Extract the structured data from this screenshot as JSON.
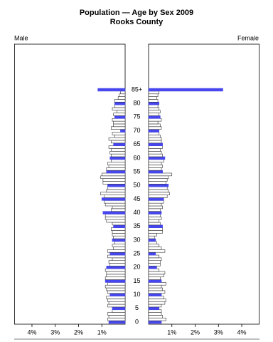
{
  "chart_data": {
    "type": "pyramid",
    "title": "Population — Age by Sex 2009",
    "subtitle": "Rooks County",
    "categories": [
      "0",
      null,
      null,
      null,
      null,
      "5",
      null,
      null,
      null,
      null,
      "10",
      null,
      null,
      null,
      null,
      "15",
      null,
      null,
      null,
      null,
      "20",
      null,
      null,
      null,
      null,
      "25",
      null,
      null,
      null,
      null,
      "30",
      null,
      null,
      null,
      null,
      "35",
      null,
      null,
      null,
      null,
      "40",
      null,
      null,
      null,
      null,
      "45",
      null,
      null,
      null,
      null,
      "50",
      null,
      null,
      null,
      null,
      "55",
      null,
      null,
      null,
      null,
      "60",
      null,
      null,
      null,
      null,
      "65",
      null,
      null,
      null,
      null,
      "70",
      null,
      null,
      null,
      null,
      "75",
      null,
      null,
      null,
      null,
      "80",
      null,
      null,
      null,
      null,
      "85+"
    ],
    "series": [
      {
        "name": "Male",
        "values": [
          0.7,
          0.75,
          0.7,
          0.75,
          0.55,
          0.55,
          0.75,
          0.7,
          0.75,
          0.8,
          0.65,
          0.75,
          0.8,
          0.85,
          0.75,
          0.85,
          0.85,
          0.8,
          0.8,
          0.85,
          0.8,
          0.65,
          0.7,
          0.55,
          0.75,
          0.65,
          0.75,
          0.5,
          0.55,
          0.45,
          0.55,
          0.5,
          0.55,
          0.55,
          0.6,
          0.5,
          0.55,
          0.8,
          0.85,
          0.85,
          0.95,
          0.6,
          0.55,
          0.85,
          0.9,
          1.0,
          0.9,
          1.05,
          0.8,
          0.75,
          0.75,
          0.95,
          0.95,
          1.05,
          1.0,
          0.8,
          0.8,
          0.7,
          0.75,
          0.6,
          0.65,
          0.6,
          0.65,
          0.6,
          0.7,
          0.5,
          0.6,
          0.7,
          0.45,
          0.55,
          0.2,
          0.6,
          0.5,
          0.5,
          0.55,
          0.45,
          0.5,
          0.35,
          0.55,
          0.45,
          0.45,
          0.45,
          0.3,
          0.25,
          0.2,
          1.17
        ]
      },
      {
        "name": "Female",
        "values": [
          0.55,
          0.75,
          0.6,
          0.55,
          0.55,
          0.45,
          0.55,
          0.7,
          0.75,
          0.65,
          0.55,
          0.7,
          0.6,
          0.55,
          0.75,
          0.55,
          0.5,
          0.65,
          0.7,
          0.45,
          0.35,
          0.5,
          0.5,
          0.55,
          0.45,
          0.3,
          0.7,
          0.55,
          0.45,
          0.35,
          0.3,
          0.25,
          0.35,
          0.6,
          0.6,
          0.6,
          0.5,
          0.45,
          0.55,
          0.5,
          0.55,
          0.5,
          0.6,
          0.55,
          0.65,
          0.65,
          0.8,
          0.9,
          0.85,
          0.8,
          0.85,
          0.75,
          0.8,
          0.85,
          1.0,
          0.6,
          0.55,
          0.6,
          0.55,
          0.65,
          0.7,
          0.6,
          0.55,
          0.5,
          0.6,
          0.6,
          0.55,
          0.55,
          0.5,
          0.45,
          0.45,
          0.55,
          0.5,
          0.4,
          0.55,
          0.5,
          0.45,
          0.5,
          0.45,
          0.4,
          0.45,
          0.4,
          0.35,
          0.4,
          0.45,
          3.19
        ]
      }
    ],
    "color": "#ffffff",
    "highlight_color": "#4646ee",
    "xlim": [
      0,
      4.75
    ],
    "xticks": [
      {
        "value": 1,
        "label": "1%"
      },
      {
        "value": 2,
        "label": "2%"
      },
      {
        "value": 3,
        "label": "3%"
      },
      {
        "value": 4,
        "label": "4%"
      }
    ]
  }
}
